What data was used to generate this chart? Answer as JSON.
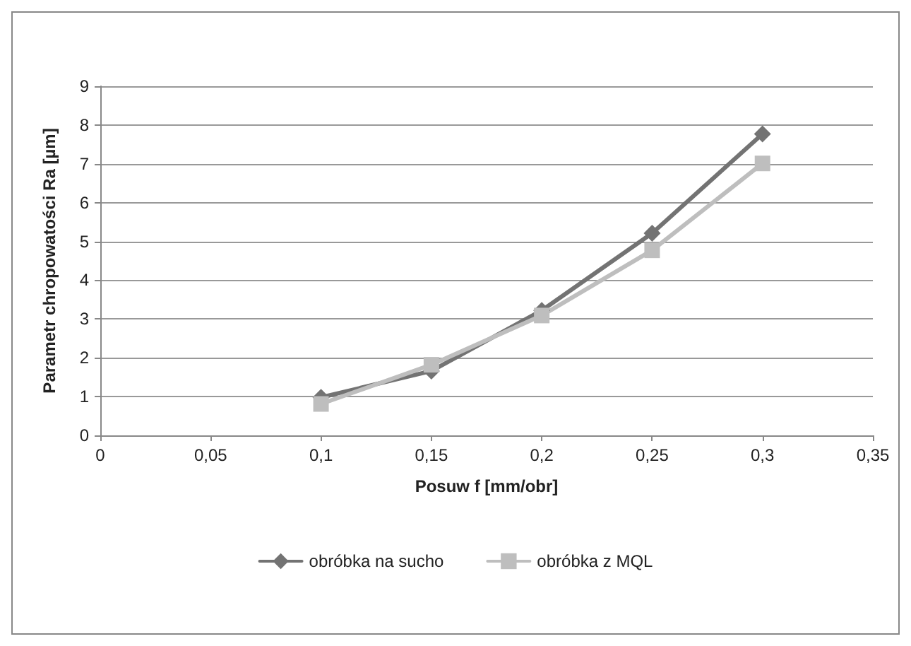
{
  "chart_data": {
    "type": "line",
    "xlabel": "Posuw f [mm/obr]",
    "ylabel": "Parametr chropowatości Ra [µm]",
    "x": [
      0.1,
      0.15,
      0.2,
      0.25,
      0.3
    ],
    "series": [
      {
        "name": "obróbka na sucho",
        "color": "#737373",
        "marker": "diamond",
        "values": [
          0.98,
          1.66,
          3.22,
          5.21,
          7.77
        ]
      },
      {
        "name": "obróbka z MQL",
        "color": "#bebebe",
        "marker": "square",
        "values": [
          0.81,
          1.82,
          3.09,
          4.77,
          7.01
        ]
      }
    ],
    "xlim": [
      0,
      0.35
    ],
    "xticks": [
      0,
      {
        "value": 0.05,
        "label": "0,05"
      },
      {
        "value": 0.1,
        "label": "0,1"
      },
      {
        "value": 0.15,
        "label": "0,15"
      },
      {
        "value": 0.2,
        "label": "0,2"
      },
      {
        "value": 0.25,
        "label": "0,25"
      },
      {
        "value": 0.3,
        "label": "0,3"
      },
      {
        "value": 0.35,
        "label": "0,35"
      }
    ],
    "ylim": [
      0,
      9
    ],
    "yticks": [
      0,
      1,
      2,
      3,
      4,
      5,
      6,
      7,
      8,
      9
    ],
    "grid": "y",
    "legend": "bottom",
    "line_style": "solid"
  }
}
